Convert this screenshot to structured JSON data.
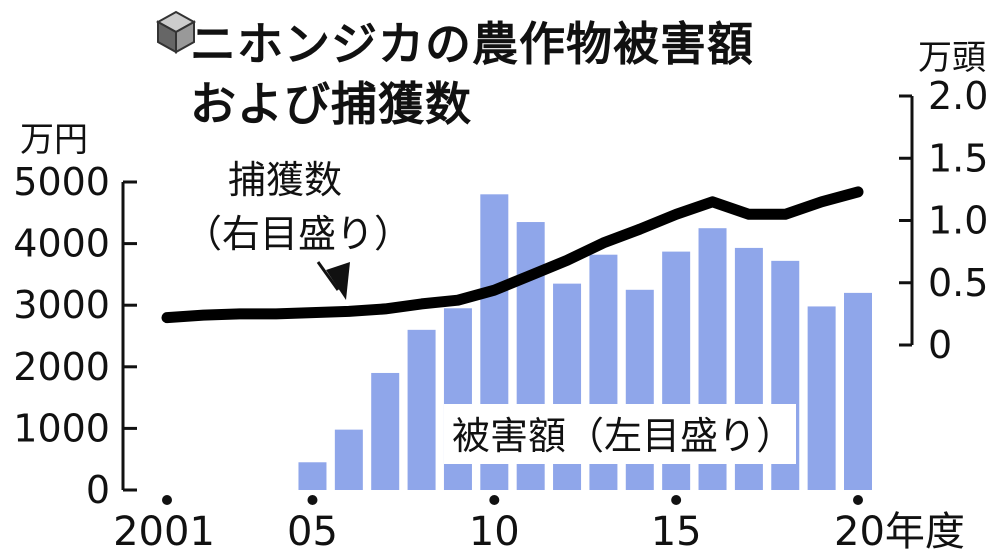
{
  "title": {
    "line1": "ニホンジカの農作物被害額",
    "line2": "および捕獲数"
  },
  "chart_data": {
    "type": "bar",
    "x": [
      2001,
      2002,
      2003,
      2004,
      2005,
      2006,
      2007,
      2008,
      2009,
      2010,
      2011,
      2012,
      2013,
      2014,
      2015,
      2016,
      2017,
      2018,
      2019,
      2020
    ],
    "series": [
      {
        "name": "被害額",
        "type": "bar",
        "axis": "left",
        "values": [
          null,
          null,
          null,
          null,
          450,
          980,
          1900,
          2600,
          2950,
          4800,
          4350,
          3350,
          3820,
          3250,
          3870,
          4250,
          3930,
          3720,
          2980,
          3200
        ]
      },
      {
        "name": "捕獲数",
        "type": "line",
        "axis": "right",
        "values": [
          0.22,
          0.24,
          0.25,
          0.25,
          0.26,
          0.27,
          0.29,
          0.33,
          0.36,
          0.44,
          0.56,
          0.68,
          0.82,
          0.93,
          1.05,
          1.15,
          1.05,
          1.05,
          1.15,
          1.23
        ]
      }
    ],
    "left_axis": {
      "unit": "万円",
      "ylim": [
        0,
        5000
      ],
      "ticks": [
        "0",
        "1000",
        "2000",
        "3000",
        "4000",
        "5000"
      ]
    },
    "right_axis": {
      "unit": "万頭",
      "ylim": [
        0,
        2.0
      ],
      "ticks": [
        "0",
        "0.5",
        "1.0",
        "1.5",
        "2.0"
      ]
    },
    "x_tick_labels": [
      {
        "x": 2001,
        "label": "2001"
      },
      {
        "x": 2005,
        "label": "05"
      },
      {
        "x": 2010,
        "label": "10"
      },
      {
        "x": 2015,
        "label": "15"
      },
      {
        "x": 2020,
        "label": "20年度"
      }
    ],
    "annotations": {
      "line_label": "捕獲数",
      "line_sublabel": "（右目盛り）",
      "bar_label": "被害額（左目盛り）"
    },
    "colors": {
      "bar": "#8fa6ea",
      "line": "#000000"
    },
    "grid": false
  }
}
